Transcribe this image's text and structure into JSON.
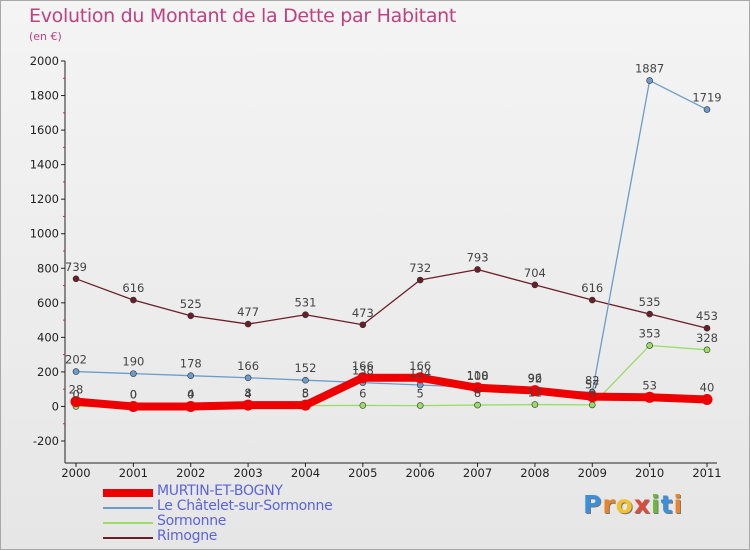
{
  "title": "Evolution du Montant de la Dette par Habitant",
  "subtitle": "(en €)",
  "logo": {
    "letters": [
      "P",
      "r",
      "o",
      "x",
      "i",
      "t",
      "i"
    ],
    "colors": [
      "#3c8fdb",
      "#e8842c",
      "#f2c12e",
      "#e04a3a",
      "#6bb83a",
      "#3c8fdb",
      "#e8842c"
    ]
  },
  "chart_data": {
    "type": "line",
    "x": [
      "2000",
      "2001",
      "2002",
      "2003",
      "2004",
      "2005",
      "2006",
      "2007",
      "2008",
      "2009",
      "2010",
      "2011"
    ],
    "yticks": [
      "-200",
      "0",
      "200",
      "400",
      "600",
      "800",
      "1000",
      "1200",
      "1400",
      "1600",
      "1800",
      "2000"
    ],
    "ylim": [
      -200,
      2000
    ],
    "grid": false,
    "legend_position": "bottom-left",
    "series": [
      {
        "name": "Rimogne",
        "color": "#6b1e2a",
        "values": [
          739,
          616,
          525,
          477,
          531,
          473,
          732,
          793,
          704,
          616,
          535,
          453
        ],
        "labels": [
          "739",
          "616",
          "525",
          "477",
          "531",
          "473",
          "732",
          "793",
          "704",
          "616",
          "535",
          "453"
        ]
      },
      {
        "name": "Le Châtelet-sur-Sormonne",
        "color": "#6b9ccc",
        "values": [
          202,
          190,
          178,
          166,
          152,
          138,
          124,
          110,
          96,
          82,
          1887,
          1719
        ],
        "labels": [
          "202",
          "190",
          "178",
          "166",
          "152",
          "138",
          "124",
          "110",
          "96",
          "82",
          "1887",
          "1719"
        ]
      },
      {
        "name": "Sormonne",
        "color": "#99dd66",
        "values": [
          0,
          0,
          4,
          4,
          5,
          6,
          5,
          8,
          11,
          9,
          353,
          328
        ],
        "labels": [
          "0",
          "0",
          "4",
          "4",
          "5",
          "6",
          "5",
          "8",
          "11",
          "9",
          "353",
          "328"
        ]
      },
      {
        "name": "MURTIN-ET-BOGNY",
        "color": "#ee0000",
        "values": [
          28,
          0,
          0,
          8,
          8,
          166,
          166,
          108,
          92,
          57,
          53,
          40
        ],
        "labels": [
          "28",
          "0",
          "0",
          "8",
          "8",
          "166",
          "166",
          "108",
          "92",
          "57",
          "53",
          "40"
        ]
      }
    ],
    "legend_order": [
      "MURTIN-ET-BOGNY",
      "Le Châtelet-sur-Sormonne",
      "Sormonne",
      "Rimogne"
    ]
  }
}
